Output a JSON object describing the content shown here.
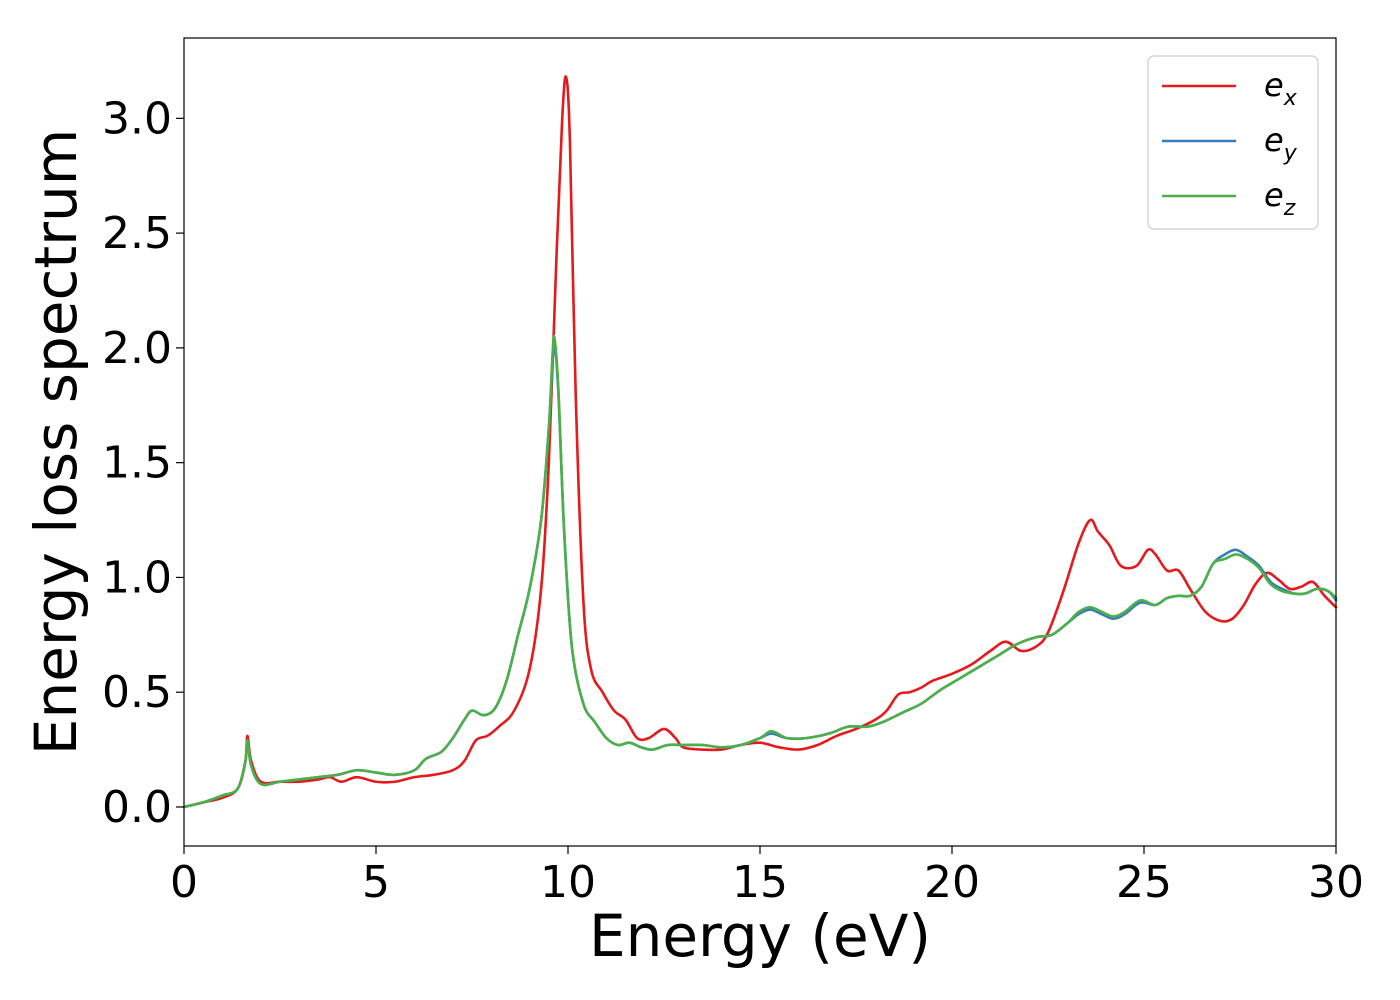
{
  "chart_data": {
    "type": "line",
    "xlabel": "Energy (eV)",
    "ylabel": "Energy loss spectrum",
    "xlim": [
      0,
      30
    ],
    "ylim": [
      -0.17,
      3.35
    ],
    "xticks": [
      "0",
      "5",
      "10",
      "15",
      "20",
      "25",
      "30"
    ],
    "yticks": [
      "0.0",
      "0.5",
      "1.0",
      "1.5",
      "2.0",
      "2.5",
      "3.0"
    ],
    "grid": false,
    "legend_position": "top-right",
    "series": [
      {
        "name": "e",
        "name_sub": "x",
        "color": "#e41a1c",
        "x": [
          0,
          0.5,
          1.0,
          1.4,
          1.6,
          1.65,
          1.75,
          2.0,
          2.5,
          3.0,
          3.5,
          3.8,
          4.1,
          4.5,
          5.0,
          5.5,
          6.0,
          6.5,
          7.0,
          7.3,
          7.6,
          7.9,
          8.2,
          8.6,
          9.0,
          9.3,
          9.5,
          9.7,
          9.85,
          9.95,
          10.05,
          10.2,
          10.4,
          10.6,
          10.9,
          11.2,
          11.5,
          11.8,
          12.1,
          12.5,
          12.8,
          13.0,
          13.5,
          14.0,
          14.5,
          15.0,
          15.5,
          16.0,
          16.5,
          17.0,
          17.5,
          18.0,
          18.3,
          18.6,
          18.9,
          19.2,
          19.5,
          20.0,
          20.5,
          21.0,
          21.4,
          21.8,
          22.2,
          22.5,
          22.9,
          23.3,
          23.6,
          23.8,
          24.1,
          24.4,
          24.8,
          25.1,
          25.3,
          25.6,
          25.9,
          26.2,
          26.6,
          27.0,
          27.3,
          27.6,
          27.9,
          28.2,
          28.5,
          28.8,
          29.1,
          29.4,
          29.7,
          30.0
        ],
        "values": [
          0.0,
          0.02,
          0.04,
          0.08,
          0.2,
          0.31,
          0.2,
          0.11,
          0.11,
          0.11,
          0.12,
          0.13,
          0.11,
          0.13,
          0.11,
          0.11,
          0.13,
          0.14,
          0.16,
          0.2,
          0.29,
          0.31,
          0.35,
          0.42,
          0.6,
          0.95,
          1.5,
          2.4,
          3.0,
          3.18,
          2.9,
          1.8,
          0.9,
          0.6,
          0.5,
          0.42,
          0.38,
          0.3,
          0.3,
          0.34,
          0.3,
          0.26,
          0.25,
          0.25,
          0.27,
          0.28,
          0.26,
          0.25,
          0.27,
          0.31,
          0.34,
          0.38,
          0.42,
          0.49,
          0.5,
          0.52,
          0.55,
          0.58,
          0.62,
          0.68,
          0.72,
          0.68,
          0.7,
          0.76,
          0.94,
          1.15,
          1.25,
          1.2,
          1.14,
          1.05,
          1.05,
          1.12,
          1.1,
          1.03,
          1.03,
          0.95,
          0.85,
          0.81,
          0.82,
          0.88,
          0.97,
          1.02,
          0.99,
          0.95,
          0.96,
          0.98,
          0.92,
          0.87
        ]
      },
      {
        "name": "e",
        "name_sub": "y",
        "color": "#377eb8",
        "x": [
          0,
          0.5,
          1.0,
          1.4,
          1.6,
          1.65,
          1.75,
          2.0,
          2.5,
          3.0,
          3.5,
          4.0,
          4.5,
          5.0,
          5.5,
          6.0,
          6.3,
          6.7,
          7.0,
          7.3,
          7.5,
          7.8,
          8.1,
          8.4,
          8.7,
          9.0,
          9.3,
          9.5,
          9.6,
          9.65,
          9.75,
          9.9,
          10.1,
          10.4,
          10.7,
          11.0,
          11.3,
          11.6,
          11.9,
          12.2,
          12.6,
          13.0,
          13.5,
          14.0,
          14.5,
          15.0,
          15.3,
          15.7,
          16.2,
          16.8,
          17.3,
          17.8,
          18.2,
          18.7,
          19.2,
          19.7,
          20.2,
          20.7,
          21.2,
          21.7,
          22.2,
          22.6,
          23.0,
          23.3,
          23.6,
          23.9,
          24.2,
          24.5,
          24.9,
          25.3,
          25.6,
          25.9,
          26.2,
          26.5,
          26.8,
          27.1,
          27.4,
          27.7,
          28.0,
          28.3,
          28.6,
          28.9,
          29.2,
          29.5,
          29.8,
          30.0
        ],
        "values": [
          0.0,
          0.02,
          0.05,
          0.08,
          0.2,
          0.29,
          0.18,
          0.1,
          0.11,
          0.12,
          0.13,
          0.14,
          0.16,
          0.15,
          0.14,
          0.16,
          0.21,
          0.24,
          0.3,
          0.38,
          0.42,
          0.4,
          0.43,
          0.55,
          0.75,
          0.95,
          1.25,
          1.65,
          1.95,
          2.02,
          1.8,
          1.2,
          0.7,
          0.45,
          0.37,
          0.3,
          0.27,
          0.28,
          0.26,
          0.25,
          0.27,
          0.27,
          0.27,
          0.26,
          0.27,
          0.3,
          0.32,
          0.3,
          0.3,
          0.32,
          0.35,
          0.35,
          0.37,
          0.41,
          0.45,
          0.51,
          0.56,
          0.61,
          0.66,
          0.71,
          0.74,
          0.75,
          0.8,
          0.84,
          0.86,
          0.84,
          0.82,
          0.84,
          0.89,
          0.88,
          0.91,
          0.92,
          0.92,
          0.96,
          1.06,
          1.1,
          1.12,
          1.09,
          1.05,
          0.98,
          0.95,
          0.93,
          0.93,
          0.95,
          0.94,
          0.9
        ]
      },
      {
        "name": "e",
        "name_sub": "z",
        "color": "#4daf4a",
        "x": [
          0,
          0.5,
          1.0,
          1.4,
          1.6,
          1.65,
          1.75,
          2.0,
          2.5,
          3.0,
          3.5,
          4.0,
          4.5,
          5.0,
          5.5,
          6.0,
          6.3,
          6.7,
          7.0,
          7.3,
          7.5,
          7.8,
          8.1,
          8.4,
          8.7,
          9.0,
          9.3,
          9.5,
          9.6,
          9.65,
          9.75,
          9.9,
          10.1,
          10.4,
          10.7,
          11.0,
          11.3,
          11.6,
          11.9,
          12.2,
          12.6,
          13.0,
          13.5,
          14.0,
          14.5,
          15.0,
          15.3,
          15.7,
          16.2,
          16.8,
          17.3,
          17.8,
          18.2,
          18.7,
          19.2,
          19.7,
          20.2,
          20.7,
          21.2,
          21.7,
          22.2,
          22.6,
          23.0,
          23.3,
          23.6,
          23.9,
          24.2,
          24.5,
          24.9,
          25.3,
          25.6,
          25.9,
          26.2,
          26.5,
          26.8,
          27.1,
          27.4,
          27.7,
          28.0,
          28.3,
          28.6,
          28.9,
          29.2,
          29.5,
          29.8,
          30.0
        ],
        "values": [
          0.0,
          0.02,
          0.05,
          0.08,
          0.2,
          0.29,
          0.18,
          0.1,
          0.11,
          0.12,
          0.13,
          0.14,
          0.16,
          0.15,
          0.14,
          0.16,
          0.21,
          0.24,
          0.3,
          0.38,
          0.42,
          0.4,
          0.43,
          0.55,
          0.75,
          0.95,
          1.25,
          1.65,
          1.98,
          2.04,
          1.82,
          1.2,
          0.7,
          0.45,
          0.37,
          0.3,
          0.27,
          0.28,
          0.26,
          0.25,
          0.27,
          0.27,
          0.27,
          0.26,
          0.27,
          0.3,
          0.33,
          0.3,
          0.3,
          0.32,
          0.35,
          0.35,
          0.37,
          0.41,
          0.45,
          0.51,
          0.56,
          0.61,
          0.66,
          0.71,
          0.74,
          0.75,
          0.8,
          0.85,
          0.87,
          0.85,
          0.83,
          0.85,
          0.9,
          0.88,
          0.91,
          0.92,
          0.92,
          0.96,
          1.06,
          1.08,
          1.1,
          1.08,
          1.04,
          0.97,
          0.94,
          0.93,
          0.93,
          0.95,
          0.94,
          0.91
        ]
      }
    ]
  }
}
